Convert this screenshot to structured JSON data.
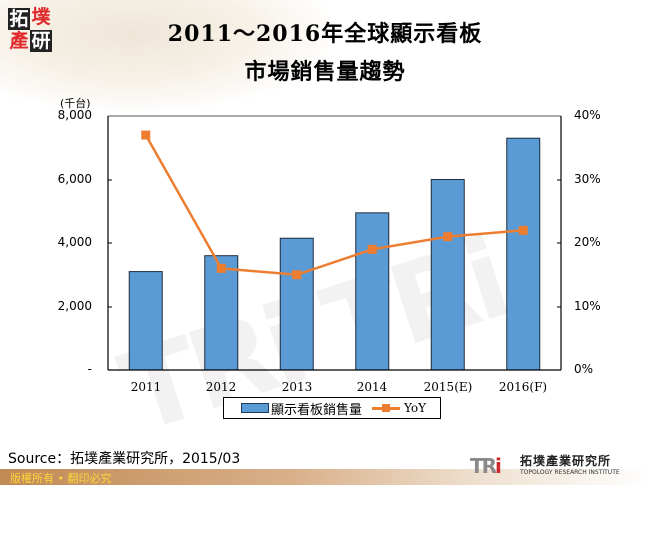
{
  "header": {
    "logo_chars": [
      "拓",
      "墣",
      "產",
      "研"
    ],
    "title_line1": "2011～2016年全球顯示看板",
    "title_line2": "市場銷售量趨勢"
  },
  "chart_data": {
    "type": "bar",
    "title": "2011～2016年全球顯示看板市場銷售量趨勢",
    "categories": [
      "2011",
      "2012",
      "2013",
      "2014",
      "2015(E)",
      "2016(F)"
    ],
    "series": [
      {
        "name": "顯示看板銷售量",
        "type": "bar",
        "axis": "left",
        "color": "#5b9bd5",
        "values": [
          3100,
          3600,
          4150,
          4950,
          6000,
          7300
        ]
      },
      {
        "name": "YoY",
        "type": "line",
        "axis": "right",
        "color": "#ed7d31",
        "values": [
          37,
          16,
          15,
          19,
          21,
          22
        ],
        "unit": "%"
      }
    ],
    "ylabel": "(千台)",
    "ylim": [
      0,
      8000
    ],
    "y_ticks": [
      "-",
      "2,000",
      "4,000",
      "6,000",
      "8,000"
    ],
    "y2lim": [
      0,
      40
    ],
    "y2_ticks": [
      "0%",
      "10%",
      "20%",
      "30%",
      "40%"
    ],
    "xlabel": "",
    "grid": false,
    "legend_position": "bottom"
  },
  "axis": {
    "unit_label": "(千台)",
    "left_ticks": [
      "8,000",
      "6,000",
      "4,000",
      "2,000",
      "-"
    ],
    "right_ticks": [
      "40%",
      "30%",
      "20%",
      "10%",
      "0%"
    ],
    "x_labels": [
      "2011",
      "2012",
      "2013",
      "2014",
      "2015(E)",
      "2016(F)"
    ]
  },
  "legend": {
    "bar_label": "顯示看板銷售量",
    "line_label": "YoY"
  },
  "footer": {
    "source": "Source：拓墣產業研究所，2015/03",
    "copyright": "版權所有 • 翻印必究",
    "brand_mark": "TRi",
    "brand_cn": "拓墣產業研究所",
    "brand_en": "TOPOLOGY RESEARCH INSTITUTE"
  },
  "colors": {
    "bar": "#5b9bd5",
    "line": "#ed7d31",
    "footer_text": "#ffd43a"
  }
}
